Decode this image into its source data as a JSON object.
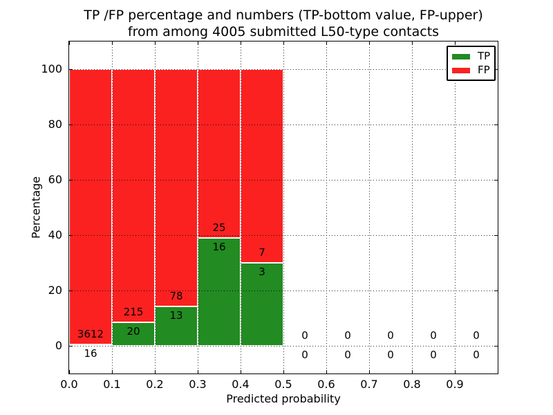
{
  "chart_data": {
    "type": "bar",
    "subtype": "stacked-percentage-histogram",
    "title_line1": "TP /FP percentage and numbers (TP-bottom value, FP-upper)",
    "title_line2": "from among 4005 submitted L50-type contacts",
    "xlabel": "Predicted probability",
    "ylabel": "Percentage",
    "xlim": [
      0.0,
      1.0
    ],
    "ylim": [
      -10,
      110
    ],
    "x_ticks": [
      0.0,
      0.1,
      0.2,
      0.3,
      0.4,
      0.5,
      0.6,
      0.7,
      0.8,
      0.9
    ],
    "x_tick_labels": [
      "0.0",
      "0.1",
      "0.2",
      "0.3",
      "0.4",
      "0.5",
      "0.6",
      "0.7",
      "0.8",
      "0.9"
    ],
    "y_ticks": [
      0,
      20,
      40,
      60,
      80,
      100
    ],
    "y_tick_labels": [
      "0",
      "20",
      "40",
      "60",
      "80",
      "100"
    ],
    "grid": "dotted",
    "bin_width": 0.1,
    "total_submitted": 4005,
    "bins": [
      {
        "range": [
          0.0,
          0.1
        ],
        "tp": 16,
        "fp": 3612,
        "tp_pct": 0.44,
        "fp_pct": 99.56
      },
      {
        "range": [
          0.1,
          0.2
        ],
        "tp": 20,
        "fp": 215,
        "tp_pct": 8.51,
        "fp_pct": 91.49
      },
      {
        "range": [
          0.2,
          0.3
        ],
        "tp": 13,
        "fp": 78,
        "tp_pct": 14.29,
        "fp_pct": 85.71
      },
      {
        "range": [
          0.3,
          0.4
        ],
        "tp": 16,
        "fp": 25,
        "tp_pct": 39.02,
        "fp_pct": 60.98
      },
      {
        "range": [
          0.4,
          0.5
        ],
        "tp": 3,
        "fp": 7,
        "tp_pct": 30.0,
        "fp_pct": 70.0
      },
      {
        "range": [
          0.5,
          0.6
        ],
        "tp": 0,
        "fp": 0,
        "tp_pct": 0,
        "fp_pct": 0
      },
      {
        "range": [
          0.6,
          0.7
        ],
        "tp": 0,
        "fp": 0,
        "tp_pct": 0,
        "fp_pct": 0
      },
      {
        "range": [
          0.7,
          0.8
        ],
        "tp": 0,
        "fp": 0,
        "tp_pct": 0,
        "fp_pct": 0
      },
      {
        "range": [
          0.8,
          0.9
        ],
        "tp": 0,
        "fp": 0,
        "tp_pct": 0,
        "fp_pct": 0
      },
      {
        "range": [
          0.9,
          1.0
        ],
        "tp": 0,
        "fp": 0,
        "tp_pct": 0,
        "fp_pct": 0
      }
    ],
    "legend": {
      "position": "upper-right",
      "entries": [
        {
          "label": "TP",
          "color": "#228b22"
        },
        {
          "label": "FP",
          "color": "#fb2121"
        }
      ]
    },
    "colors": {
      "tp": "#228b22",
      "fp": "#fb2121",
      "grid": "#000000",
      "spine": "#000000",
      "text": "#000000",
      "background": "#ffffff"
    }
  }
}
